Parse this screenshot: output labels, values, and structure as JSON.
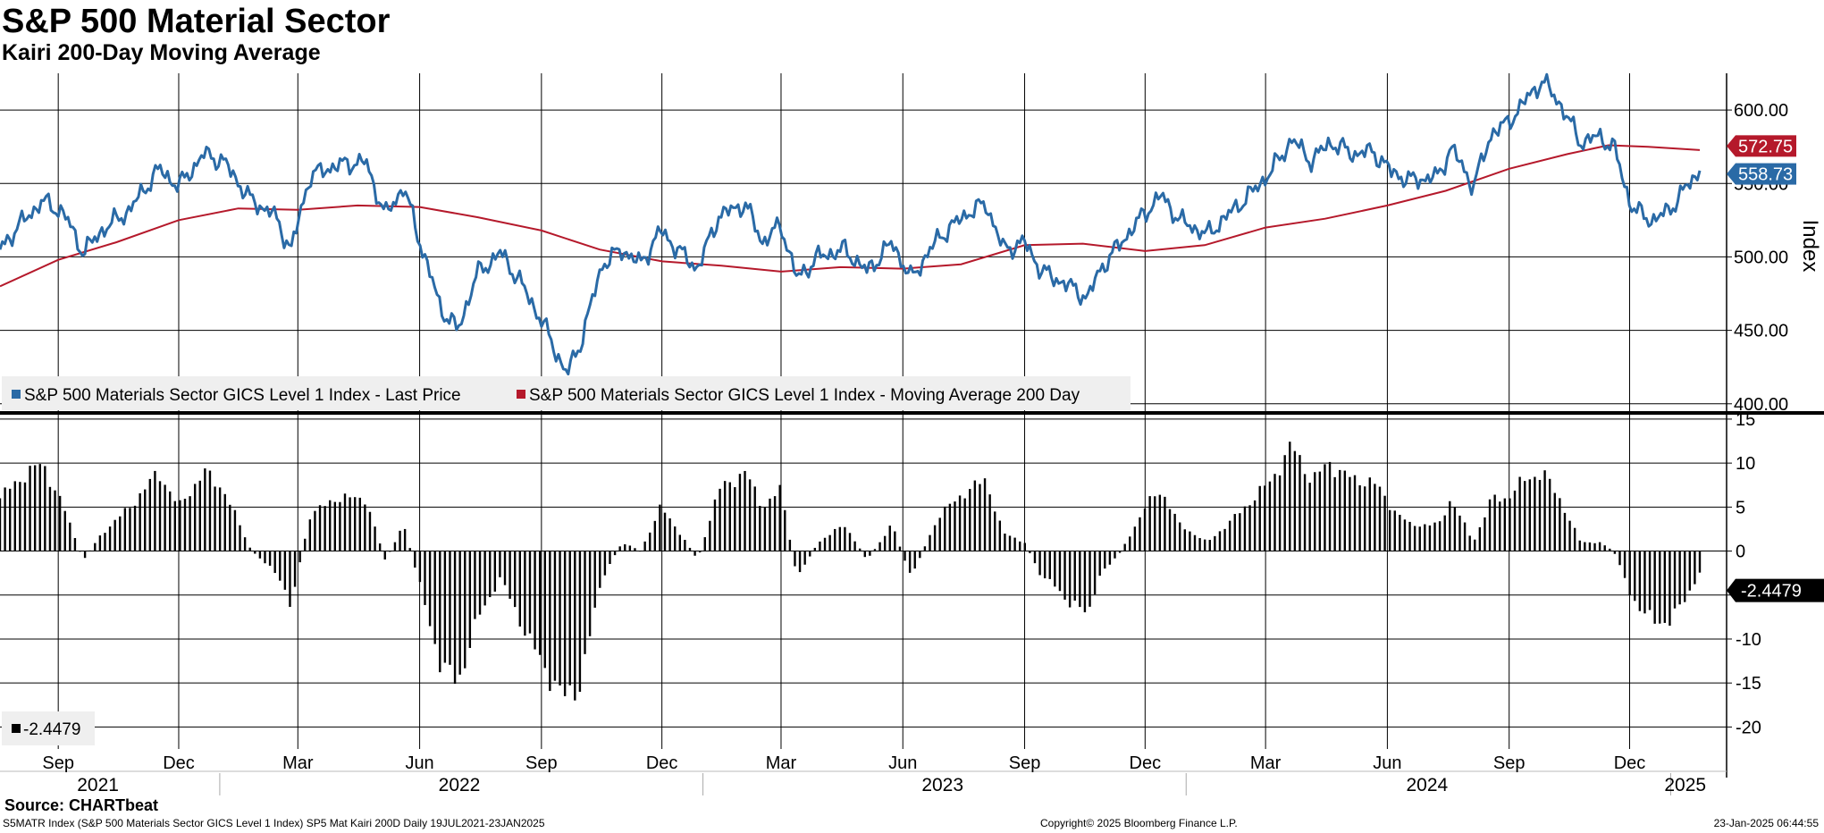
{
  "title": "S&P 500 Material Sector",
  "subtitle": "Kairi 200-Day Moving Average",
  "footer": {
    "source": "Source: CHARTbeat",
    "description": "S5MATR Index (S&P 500 Materials Sector GICS Level 1 Index) SP5 Mat Kairi 200D  Daily 19JUL2021-23JAN2025",
    "copyright": "Copyright© 2025 Bloomberg Finance L.P.",
    "timestamp": "23-Jan-2025 06:44:55"
  },
  "colors": {
    "price": "#2a6aa6",
    "ma": "#b5192b",
    "kairi": "#000000",
    "grid": "#000000"
  },
  "chart_data": [
    {
      "type": "line",
      "title": "S&P 500 Material Sector",
      "ylabel": "Index",
      "ylim": [
        395,
        625
      ],
      "yticks": [
        400,
        450,
        500,
        550,
        600
      ],
      "ytick_labels": [
        "400.00",
        "450.00",
        "500.00",
        "550.00",
        "600.00"
      ],
      "x_range": [
        "2021-07-19",
        "2025-01-23"
      ],
      "legend": [
        "S&P 500 Materials Sector GICS Level 1 Index - Last Price",
        "S&P 500 Materials Sector GICS Level 1 Index - Moving Average 200 Day"
      ],
      "legend_position": "bottom-left",
      "last_values": {
        "ma": "572.75",
        "price": "558.73"
      },
      "series": [
        {
          "name": "S&P 500 Materials Sector GICS Level 1 Index - Last Price",
          "dates": [
            "2021-07-19",
            "2021-08-01",
            "2021-08-20",
            "2021-09-05",
            "2021-09-20",
            "2021-10-04",
            "2021-10-25",
            "2021-11-16",
            "2021-12-01",
            "2021-12-20",
            "2022-01-04",
            "2022-01-25",
            "2022-02-10",
            "2022-02-24",
            "2022-03-10",
            "2022-03-29",
            "2022-04-21",
            "2022-05-06",
            "2022-05-20",
            "2022-06-03",
            "2022-06-17",
            "2022-06-30",
            "2022-07-14",
            "2022-08-01",
            "2022-08-16",
            "2022-09-02",
            "2022-09-20",
            "2022-09-30",
            "2022-10-17",
            "2022-11-01",
            "2022-11-15",
            "2022-11-30",
            "2022-12-15",
            "2022-12-28",
            "2023-01-13",
            "2023-02-02",
            "2023-02-15",
            "2023-03-01",
            "2023-03-13",
            "2023-03-29",
            "2023-04-18",
            "2023-05-05",
            "2023-05-24",
            "2023-06-07",
            "2023-06-28",
            "2023-07-20",
            "2023-08-03",
            "2023-08-16",
            "2023-09-01",
            "2023-09-14",
            "2023-09-25",
            "2023-10-05",
            "2023-10-19",
            "2023-10-27",
            "2023-11-13",
            "2023-12-01",
            "2023-12-13",
            "2023-12-27",
            "2024-01-17",
            "2024-02-01",
            "2024-02-21",
            "2024-03-05",
            "2024-03-21",
            "2024-04-05",
            "2024-04-18",
            "2024-05-07",
            "2024-05-21",
            "2024-06-04",
            "2024-06-18",
            "2024-07-10",
            "2024-07-19",
            "2024-08-05",
            "2024-08-19",
            "2024-08-30",
            "2024-09-12",
            "2024-09-26",
            "2024-10-09",
            "2024-10-25",
            "2024-11-08",
            "2024-11-19",
            "2024-12-02",
            "2024-12-11",
            "2024-12-20",
            "2024-12-31",
            "2025-01-10",
            "2025-01-23"
          ],
          "values": [
            505,
            520,
            538,
            530,
            503,
            518,
            532,
            560,
            548,
            570,
            565,
            538,
            530,
            505,
            555,
            562,
            565,
            528,
            548,
            505,
            465,
            450,
            488,
            503,
            483,
            455,
            420,
            440,
            495,
            505,
            495,
            518,
            503,
            492,
            528,
            536,
            510,
            522,
            485,
            500,
            505,
            490,
            510,
            485,
            513,
            530,
            536,
            505,
            510,
            490,
            485,
            480,
            472,
            490,
            510,
            530,
            542,
            525,
            515,
            528,
            545,
            558,
            580,
            565,
            578,
            570,
            572,
            558,
            552,
            555,
            575,
            548,
            585,
            590,
            605,
            620,
            605,
            578,
            582,
            575,
            535,
            528,
            525,
            532,
            544,
            558.73
          ]
        },
        {
          "name": "S&P 500 Materials Sector GICS Level 1 Index - Moving Average 200 Day",
          "dates": [
            "2021-07-19",
            "2021-09-01",
            "2021-10-15",
            "2021-12-01",
            "2022-01-15",
            "2022-03-01",
            "2022-04-15",
            "2022-06-01",
            "2022-07-15",
            "2022-09-01",
            "2022-10-15",
            "2022-12-01",
            "2023-01-15",
            "2023-03-01",
            "2023-04-15",
            "2023-06-01",
            "2023-07-15",
            "2023-09-01",
            "2023-10-15",
            "2023-12-01",
            "2024-01-15",
            "2024-03-01",
            "2024-04-15",
            "2024-06-01",
            "2024-07-15",
            "2024-09-01",
            "2024-10-15",
            "2024-11-15",
            "2024-12-15",
            "2025-01-23"
          ],
          "values": [
            480,
            498,
            510,
            525,
            533,
            532,
            535,
            534,
            527,
            518,
            505,
            497,
            494,
            490,
            493,
            492,
            495,
            508,
            509,
            504,
            508,
            520,
            526,
            535,
            545,
            560,
            570,
            576,
            575,
            572.75
          ]
        }
      ]
    },
    {
      "type": "bar",
      "title": "Kairi 200-Day Moving Average",
      "ylim": [
        -22.5,
        15.5
      ],
      "yticks": [
        -20,
        -15,
        -10,
        -5,
        0,
        5,
        10,
        15
      ],
      "ytick_labels": [
        "-20",
        "-15",
        "-10",
        "-5",
        "0",
        "5",
        "10",
        "15"
      ],
      "last_value_label": "-2.4479",
      "legend": [
        "-2.4479"
      ],
      "legend_position": "bottom-left",
      "series": [
        {
          "name": "SP5 Mat Kairi 200D",
          "dates": [
            "2021-07-19",
            "2021-08-01",
            "2021-08-20",
            "2021-09-05",
            "2021-09-20",
            "2021-10-04",
            "2021-10-25",
            "2021-11-16",
            "2021-12-01",
            "2021-12-20",
            "2022-01-04",
            "2022-01-25",
            "2022-02-10",
            "2022-02-24",
            "2022-03-10",
            "2022-03-29",
            "2022-04-21",
            "2022-05-06",
            "2022-05-20",
            "2022-06-03",
            "2022-06-17",
            "2022-06-30",
            "2022-07-14",
            "2022-08-01",
            "2022-08-16",
            "2022-09-02",
            "2022-09-20",
            "2022-09-30",
            "2022-10-17",
            "2022-11-01",
            "2022-11-15",
            "2022-11-30",
            "2022-12-15",
            "2022-12-28",
            "2023-01-13",
            "2023-02-02",
            "2023-02-15",
            "2023-03-01",
            "2023-03-13",
            "2023-03-29",
            "2023-04-18",
            "2023-05-05",
            "2023-05-24",
            "2023-06-07",
            "2023-06-28",
            "2023-07-20",
            "2023-08-03",
            "2023-08-16",
            "2023-09-01",
            "2023-09-14",
            "2023-09-25",
            "2023-10-05",
            "2023-10-19",
            "2023-10-27",
            "2023-11-13",
            "2023-12-01",
            "2023-12-13",
            "2023-12-27",
            "2024-01-17",
            "2024-02-01",
            "2024-02-21",
            "2024-03-05",
            "2024-03-21",
            "2024-04-05",
            "2024-04-18",
            "2024-05-07",
            "2024-05-21",
            "2024-06-04",
            "2024-06-18",
            "2024-07-10",
            "2024-07-19",
            "2024-08-05",
            "2024-08-19",
            "2024-08-30",
            "2024-09-12",
            "2024-09-26",
            "2024-10-09",
            "2024-10-25",
            "2024-11-08",
            "2024-11-19",
            "2024-12-02",
            "2024-12-11",
            "2024-12-20",
            "2024-12-31",
            "2025-01-10",
            "2025-01-23"
          ],
          "values": [
            6,
            8,
            10,
            5,
            -1,
            2,
            5,
            9,
            5,
            9,
            7,
            0,
            -2,
            -6,
            4,
            6,
            6,
            -1,
            3,
            -5,
            -13,
            -15,
            -8,
            -3,
            -8,
            -13,
            -17,
            -15,
            -3,
            1,
            0,
            5,
            2,
            -1,
            7,
            9,
            5,
            7,
            -3,
            1,
            3,
            -1,
            3,
            -3,
            4,
            7,
            8,
            2,
            1,
            -3,
            -4,
            -6,
            -7,
            -3,
            0,
            5,
            7,
            3,
            1,
            3,
            6,
            8,
            12,
            8,
            10,
            8,
            8,
            5,
            3,
            3,
            6,
            1,
            6,
            6,
            8,
            9,
            6,
            1,
            1,
            0,
            -5,
            -7,
            -8,
            -8,
            -6,
            -2.4479
          ]
        }
      ]
    }
  ],
  "x_axis": {
    "months": [
      {
        "label": "Sep",
        "date": "2021-09-01"
      },
      {
        "label": "Dec",
        "date": "2021-12-01"
      },
      {
        "label": "Mar",
        "date": "2022-03-01"
      },
      {
        "label": "Jun",
        "date": "2022-06-01"
      },
      {
        "label": "Sep",
        "date": "2022-09-01"
      },
      {
        "label": "Dec",
        "date": "2022-12-01"
      },
      {
        "label": "Mar",
        "date": "2023-03-01"
      },
      {
        "label": "Jun",
        "date": "2023-06-01"
      },
      {
        "label": "Sep",
        "date": "2023-09-01"
      },
      {
        "label": "Dec",
        "date": "2023-12-01"
      },
      {
        "label": "Mar",
        "date": "2024-03-01"
      },
      {
        "label": "Jun",
        "date": "2024-06-01"
      },
      {
        "label": "Sep",
        "date": "2024-09-01"
      },
      {
        "label": "Dec",
        "date": "2024-12-01"
      }
    ],
    "years": [
      {
        "label": "2021",
        "date": "2021-10-01"
      },
      {
        "label": "2022",
        "date": "2022-07-01"
      },
      {
        "label": "2023",
        "date": "2023-07-01"
      },
      {
        "label": "2024",
        "date": "2024-07-01"
      },
      {
        "label": "2025",
        "date": "2025-01-12"
      }
    ],
    "year_boundaries": [
      "2022-01-01",
      "2023-01-01",
      "2024-01-01",
      "2025-01-01"
    ]
  }
}
